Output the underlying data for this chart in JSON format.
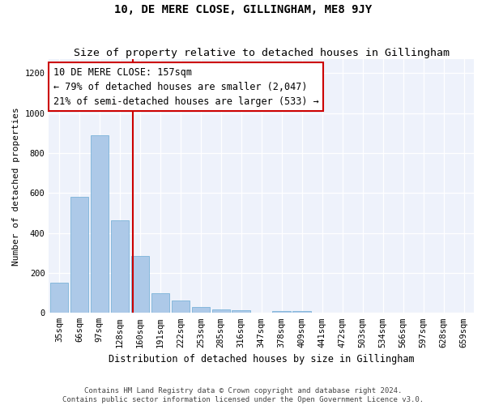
{
  "title": "10, DE MERE CLOSE, GILLINGHAM, ME8 9JY",
  "subtitle": "Size of property relative to detached houses in Gillingham",
  "xlabel": "Distribution of detached houses by size in Gillingham",
  "ylabel": "Number of detached properties",
  "categories": [
    "35sqm",
    "66sqm",
    "97sqm",
    "128sqm",
    "160sqm",
    "191sqm",
    "222sqm",
    "253sqm",
    "285sqm",
    "316sqm",
    "347sqm",
    "378sqm",
    "409sqm",
    "441sqm",
    "472sqm",
    "503sqm",
    "534sqm",
    "566sqm",
    "597sqm",
    "628sqm",
    "659sqm"
  ],
  "values": [
    150,
    580,
    890,
    465,
    285,
    100,
    62,
    28,
    18,
    12,
    0,
    8,
    8,
    0,
    0,
    0,
    0,
    0,
    0,
    0,
    0
  ],
  "bar_color": "#adc9e8",
  "bar_edge_color": "#6aaad4",
  "property_line_color": "#cc0000",
  "annotation_text": "10 DE MERE CLOSE: 157sqm\n← 79% of detached houses are smaller (2,047)\n21% of semi-detached houses are larger (533) →",
  "annotation_box_facecolor": "#ffffff",
  "annotation_box_edgecolor": "#cc0000",
  "ylim": [
    0,
    1270
  ],
  "yticks": [
    0,
    200,
    400,
    600,
    800,
    1000,
    1200
  ],
  "background_color": "#eef2fb",
  "footer_line1": "Contains HM Land Registry data © Crown copyright and database right 2024.",
  "footer_line2": "Contains public sector information licensed under the Open Government Licence v3.0.",
  "title_fontsize": 10,
  "subtitle_fontsize": 9.5,
  "xlabel_fontsize": 8.5,
  "ylabel_fontsize": 8,
  "tick_fontsize": 7.5,
  "annotation_fontsize": 8.5,
  "footer_fontsize": 6.5
}
